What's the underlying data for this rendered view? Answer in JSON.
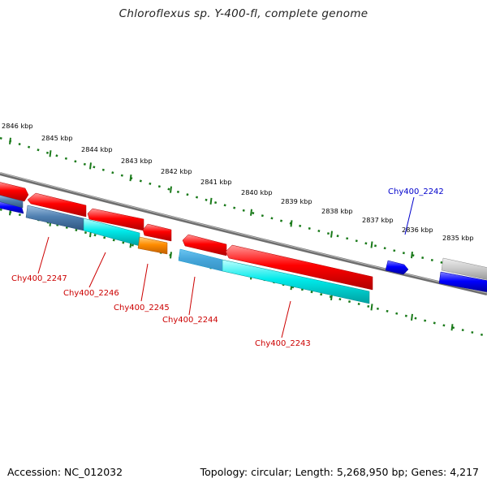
{
  "title": "Chloroflexus sp. Y-400-fl, complete genome",
  "footer": {
    "accession": "Accession: NC_012032",
    "summary": "Topology: circular; Length: 5,268,950 bp; Genes: 4,217"
  },
  "kbp_labels": [
    "2846 kbp",
    "2845 kbp",
    "2844 kbp",
    "2843 kbp",
    "2842 kbp",
    "2841 kbp",
    "2840 kbp",
    "2839 kbp",
    "2838 kbp",
    "2837 kbp",
    "2836 kbp",
    "2835 kbp"
  ],
  "gene_labels": {
    "g2242": "Chy400_2242",
    "g2243": "Chy400_2243",
    "g2244": "Chy400_2244",
    "g2245": "Chy400_2245",
    "g2246": "Chy400_2246",
    "g2247": "Chy400_2247"
  },
  "colors": {
    "cds": "#ff0000",
    "gene_label": "#cc0000",
    "highlight": "#0000ff",
    "rna": "#00e5e5",
    "misc": "#ff8800",
    "backbone": "#777777",
    "ticks": "#117711"
  }
}
